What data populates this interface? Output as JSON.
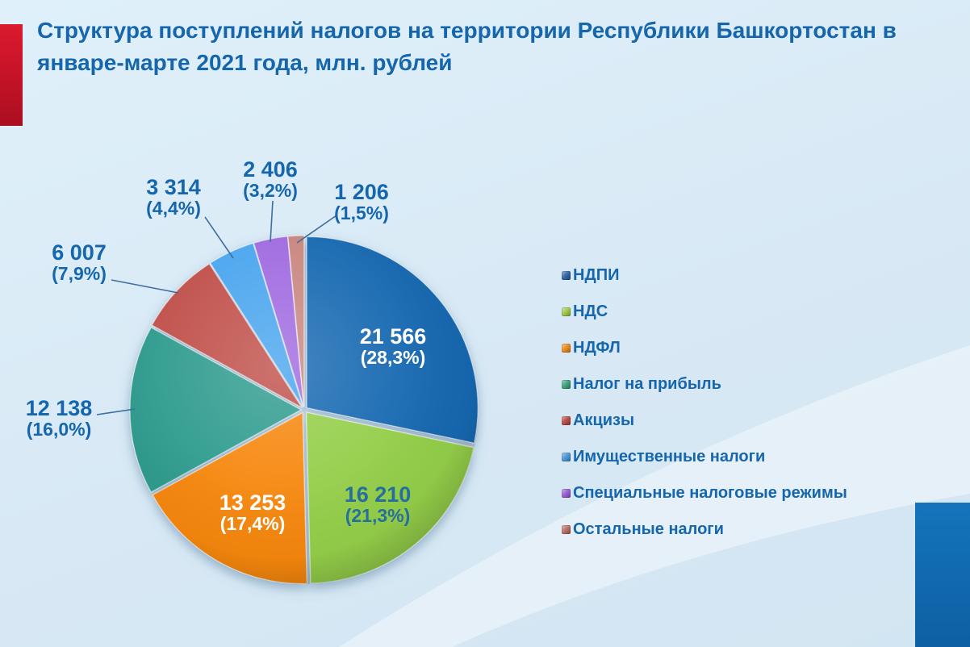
{
  "title": {
    "text": "Структура поступлений налогов на территории Республики Башкортостан в январе-марте 2021 года, млн. рублей"
  },
  "colors": {
    "title_text": "#1566ad",
    "outside_label_text": "#1566ad",
    "leader_line": "#3e6e9e",
    "background": "#d8e9f5",
    "accent_red_bar": "#c11226",
    "accent_blue_rect": "#1170b5"
  },
  "chart_data": {
    "type": "pie",
    "title": "Структура поступлений налогов на территории Республики Башкортостан в январе-марте 2021 года, млн. рублей",
    "unit": "млн. рублей",
    "start_angle_deg": 0,
    "direction": "clockwise",
    "legend_position": "right",
    "slices": [
      {
        "label": "НДПИ",
        "value": 21566,
        "pct": 28.3,
        "value_label": "21 566",
        "pct_label": "(28,3%)",
        "color": "#1268b1",
        "legend_color": "#1f5a9c",
        "label_placement": "inside",
        "label_color": "#ffffff"
      },
      {
        "label": "НДС",
        "value": 16210,
        "pct": 21.3,
        "value_label": "16 210",
        "pct_label": "(21,3%)",
        "color": "#94ce4a",
        "legend_color": "#9cc43c",
        "label_placement": "inside",
        "label_color": "#256f9c"
      },
      {
        "label": "НДФЛ",
        "value": 13253,
        "pct": 17.4,
        "value_label": "13 253",
        "pct_label": "(17,4%)",
        "color": "#f6870f",
        "legend_color": "#e8820c",
        "label_placement": "inside",
        "label_color": "#ffffff"
      },
      {
        "label": "Налог на прибыль",
        "value": 12138,
        "pct": 16.0,
        "value_label": "12 138",
        "pct_label": "(16,0%)",
        "color": "#2d9b8e",
        "legend_color": "#2e9a72",
        "label_placement": "outside",
        "label_color": "#1566ad"
      },
      {
        "label": "Акцизы",
        "value": 6007,
        "pct": 7.9,
        "value_label": "6 007",
        "pct_label": "(7,9%)",
        "color": "#c05048",
        "legend_color": "#b23c35",
        "label_placement": "outside",
        "label_color": "#1566ad"
      },
      {
        "label": "Имущественные налоги",
        "value": 3314,
        "pct": 4.4,
        "value_label": "3 314",
        "pct_label": "(4,4%)",
        "color": "#4aa5ee",
        "legend_color": "#3c8fd6",
        "label_placement": "outside",
        "label_color": "#1566ad"
      },
      {
        "label": "Специальные налоговые режимы",
        "value": 2406,
        "pct": 3.2,
        "value_label": "2 406",
        "pct_label": "(3,2%)",
        "color": "#a06ae0",
        "legend_color": "#9150cf",
        "label_placement": "outside",
        "label_color": "#1566ad"
      },
      {
        "label": "Остальные налоги",
        "value": 1206,
        "pct": 1.5,
        "value_label": "1 206",
        "pct_label": "(1,5%)",
        "color": "#c9867f",
        "legend_color": "#b5635c",
        "label_placement": "outside",
        "label_color": "#1566ad"
      }
    ]
  }
}
